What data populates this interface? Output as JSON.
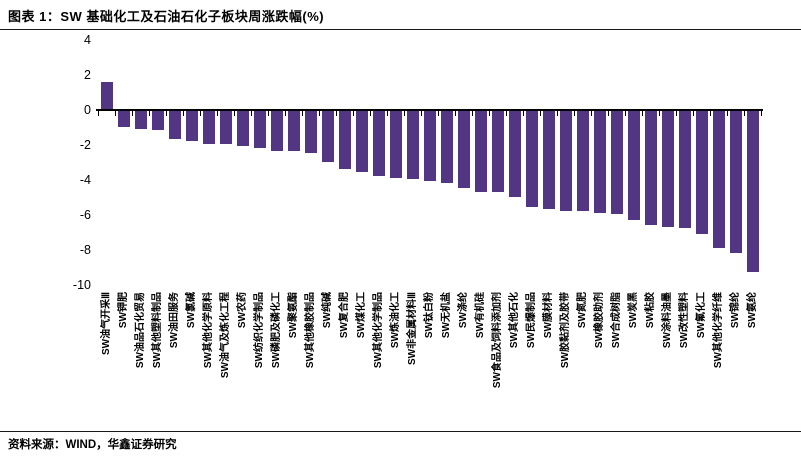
{
  "header": {
    "title": "图表 1：SW 基础化工及石油石化子板块周涨跌幅(%)"
  },
  "footer": {
    "source": "资料来源：WIND，华鑫证券研究"
  },
  "chart_data": {
    "type": "bar",
    "title": "SW 基础化工及石油石化子板块周涨跌幅(%)",
    "xlabel": "",
    "ylabel": "",
    "ylim": [
      -10,
      4
    ],
    "yticks": [
      4,
      2,
      0,
      -2,
      -4,
      -6,
      -8,
      -10
    ],
    "grid": false,
    "legend_position": "none",
    "bar_color": "#523583",
    "axis_color": "#000000",
    "categories": [
      "SW油气开采Ⅲ",
      "SW钾肥",
      "SW油品石化贸易",
      "SW其他塑料制品",
      "SW油田服务",
      "SW氯碱",
      "SW其他化学原料",
      "SW油气及炼化工程",
      "SW农药",
      "SW纺织化学制品",
      "SW磷肥及磷化工",
      "SW聚氨酯",
      "SW其他橡胶制品",
      "SW纯碱",
      "SW复合肥",
      "SW煤化工",
      "SW其他化学制品",
      "SW炼油化工",
      "SW非金属材料Ⅲ",
      "SW钛白粉",
      "SW无机盐",
      "SW涤纶",
      "SW有机硅",
      "SW食品及饲料添加剂",
      "SW其他石化",
      "SW民爆制品",
      "SW膜材料",
      "SW胶黏剂及胶带",
      "SW氮肥",
      "SW橡胶助剂",
      "SW合成树脂",
      "SW炭黑",
      "SW粘胶",
      "SW涂料油墨",
      "SW改性塑料",
      "SW氟化工",
      "SW其他化学纤维",
      "SW锦纶",
      "SW氨纶"
    ],
    "values": [
      1.6,
      -0.9,
      -1.0,
      -1.1,
      -1.6,
      -1.7,
      -1.9,
      -1.9,
      -2.0,
      -2.1,
      -2.3,
      -2.3,
      -2.4,
      -2.9,
      -3.3,
      -3.5,
      -3.7,
      -3.8,
      -3.9,
      -4.0,
      -4.1,
      -4.4,
      -4.6,
      -4.6,
      -4.9,
      -5.5,
      -5.6,
      -5.7,
      -5.7,
      -5.8,
      -5.9,
      -6.2,
      -6.5,
      -6.6,
      -6.7,
      -7.0,
      -7.8,
      -8.1,
      -9.2
    ]
  }
}
